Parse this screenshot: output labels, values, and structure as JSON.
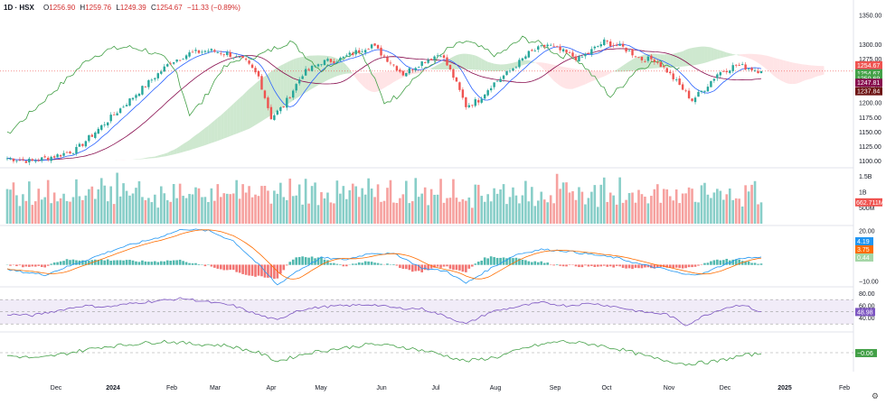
{
  "header": {
    "symbol": "1D · HSX",
    "open_label": "O",
    "open": "1256.90",
    "high_label": "H",
    "high": "1259.76",
    "low_label": "L",
    "low": "1249.39",
    "close_label": "C",
    "close": "1254.67",
    "change": "−11.33 (−0.89%)"
  },
  "colors": {
    "up": "#26a69a",
    "down": "#ef5350",
    "cloud_up": "#a5d6a7",
    "cloud_down": "#ffcdd2",
    "tenkan": "#2962ff",
    "kijun": "#880e4f",
    "chikou": "#43a047",
    "macd": "#2196f3",
    "signal": "#ff6d00",
    "rsi": "#7e57c2",
    "osc": "#43a047"
  },
  "chart_data": {
    "type": "candlestick",
    "title": "1D · HSX",
    "price_axis": {
      "ticks": [
        "1350.00",
        "1300.00",
        "1275.00",
        "1250.00",
        "1225.00",
        "1200.00",
        "1175.00",
        "1150.00",
        "1125.00",
        "1100.00"
      ]
    },
    "price_range": [
      1100,
      1350
    ],
    "time_axis": [
      "Dec",
      "2024",
      "Feb",
      "Mar",
      "Apr",
      "May",
      "Jun",
      "Jul",
      "Aug",
      "Sep",
      "Oct",
      "Nov",
      "Dec",
      "2025",
      "Feb"
    ],
    "price_badges": [
      {
        "value": "1263.54",
        "color": "#2962ff"
      },
      {
        "value": "1254.67",
        "color": "#ef5350"
      },
      {
        "value": "1254.67",
        "color": "#43a047"
      },
      {
        "value": "1250.69",
        "color": "#43a047"
      },
      {
        "value": "1247.81",
        "color": "#880e4f"
      },
      {
        "value": "1237.84",
        "color": "#6d1414"
      }
    ],
    "close_anchors": [
      [
        0,
        1105
      ],
      [
        8,
        1100
      ],
      [
        16,
        1110
      ],
      [
        22,
        1120
      ],
      [
        30,
        1160
      ],
      [
        38,
        1200
      ],
      [
        46,
        1240
      ],
      [
        52,
        1270
      ],
      [
        58,
        1285
      ],
      [
        64,
        1290
      ],
      [
        70,
        1285
      ],
      [
        76,
        1270
      ],
      [
        80,
        1245
      ],
      [
        84,
        1175
      ],
      [
        88,
        1195
      ],
      [
        94,
        1250
      ],
      [
        100,
        1270
      ],
      [
        106,
        1275
      ],
      [
        112,
        1290
      ],
      [
        116,
        1300
      ],
      [
        120,
        1280
      ],
      [
        126,
        1250
      ],
      [
        132,
        1270
      ],
      [
        138,
        1285
      ],
      [
        142,
        1245
      ],
      [
        146,
        1195
      ],
      [
        150,
        1205
      ],
      [
        154,
        1230
      ],
      [
        160,
        1255
      ],
      [
        166,
        1285
      ],
      [
        172,
        1300
      ],
      [
        178,
        1285
      ],
      [
        182,
        1275
      ],
      [
        186,
        1290
      ],
      [
        190,
        1305
      ],
      [
        196,
        1295
      ],
      [
        202,
        1275
      ],
      [
        206,
        1275
      ],
      [
        210,
        1255
      ],
      [
        214,
        1230
      ],
      [
        218,
        1205
      ],
      [
        222,
        1225
      ],
      [
        226,
        1250
      ],
      [
        232,
        1265
      ],
      [
        236,
        1260
      ],
      [
        240,
        1254.67
      ]
    ],
    "volume_axis": {
      "ticks": [
        "1.5B",
        "1B",
        "500M"
      ],
      "last": "662.711M"
    },
    "volume_values": [
      950,
      1050,
      1200,
      880,
      760,
      1100,
      900,
      1150,
      700,
      1000,
      1250,
      980,
      850,
      1120,
      760,
      1300,
      900,
      1050,
      1180,
      820
    ],
    "macd_axis": {
      "ticks": [
        "20.00",
        "10.00",
        "0.00",
        "−10.00"
      ],
      "range": [
        -12,
        22
      ]
    },
    "macd_last": {
      "macd": "4.19",
      "signal": "3.75",
      "hist": "0.44"
    },
    "macd_anchors": [
      [
        0,
        -3
      ],
      [
        12,
        -6
      ],
      [
        24,
        2
      ],
      [
        36,
        10
      ],
      [
        48,
        16
      ],
      [
        56,
        21
      ],
      [
        64,
        20
      ],
      [
        72,
        14
      ],
      [
        80,
        0
      ],
      [
        86,
        -12
      ],
      [
        92,
        -4
      ],
      [
        100,
        4
      ],
      [
        108,
        3
      ],
      [
        116,
        7
      ],
      [
        124,
        6
      ],
      [
        132,
        -2
      ],
      [
        140,
        -4
      ],
      [
        146,
        -11
      ],
      [
        154,
        -2
      ],
      [
        162,
        6
      ],
      [
        170,
        9
      ],
      [
        178,
        8
      ],
      [
        186,
        6
      ],
      [
        194,
        4
      ],
      [
        202,
        0
      ],
      [
        210,
        -3
      ],
      [
        216,
        -6
      ],
      [
        222,
        -5
      ],
      [
        228,
        0
      ],
      [
        234,
        4
      ],
      [
        240,
        4.19
      ]
    ],
    "rsi_axis": {
      "ticks": [
        "80.00",
        "60.00",
        "40.00"
      ],
      "upper": 70,
      "lower": 30,
      "range": [
        20,
        85
      ]
    },
    "rsi_last": "48.98",
    "rsi_anchors": [
      [
        0,
        46
      ],
      [
        8,
        44
      ],
      [
        16,
        52
      ],
      [
        24,
        60
      ],
      [
        32,
        58
      ],
      [
        40,
        64
      ],
      [
        48,
        68
      ],
      [
        56,
        72
      ],
      [
        64,
        66
      ],
      [
        72,
        60
      ],
      [
        80,
        45
      ],
      [
        86,
        36
      ],
      [
        92,
        52
      ],
      [
        100,
        58
      ],
      [
        108,
        60
      ],
      [
        116,
        62
      ],
      [
        124,
        56
      ],
      [
        132,
        55
      ],
      [
        140,
        42
      ],
      [
        146,
        30
      ],
      [
        154,
        50
      ],
      [
        162,
        58
      ],
      [
        170,
        65
      ],
      [
        178,
        60
      ],
      [
        186,
        64
      ],
      [
        194,
        58
      ],
      [
        202,
        50
      ],
      [
        210,
        46
      ],
      [
        216,
        28
      ],
      [
        222,
        44
      ],
      [
        228,
        56
      ],
      [
        234,
        62
      ],
      [
        240,
        48.98
      ]
    ],
    "osc_last": "−0.06",
    "osc_anchors": [
      [
        0,
        -0.2
      ],
      [
        10,
        -0.4
      ],
      [
        20,
        0.0
      ],
      [
        30,
        0.4
      ],
      [
        40,
        0.6
      ],
      [
        50,
        0.8
      ],
      [
        60,
        0.6
      ],
      [
        70,
        0.5
      ],
      [
        80,
        0.0
      ],
      [
        86,
        -0.6
      ],
      [
        96,
        0.0
      ],
      [
        106,
        0.3
      ],
      [
        116,
        0.6
      ],
      [
        126,
        0.4
      ],
      [
        136,
        0.0
      ],
      [
        146,
        -0.6
      ],
      [
        156,
        -0.3
      ],
      [
        166,
        0.4
      ],
      [
        176,
        0.8
      ],
      [
        186,
        0.6
      ],
      [
        196,
        0.2
      ],
      [
        206,
        -0.4
      ],
      [
        216,
        -0.8
      ],
      [
        226,
        -0.6
      ],
      [
        234,
        -0.2
      ],
      [
        240,
        -0.06
      ]
    ]
  }
}
